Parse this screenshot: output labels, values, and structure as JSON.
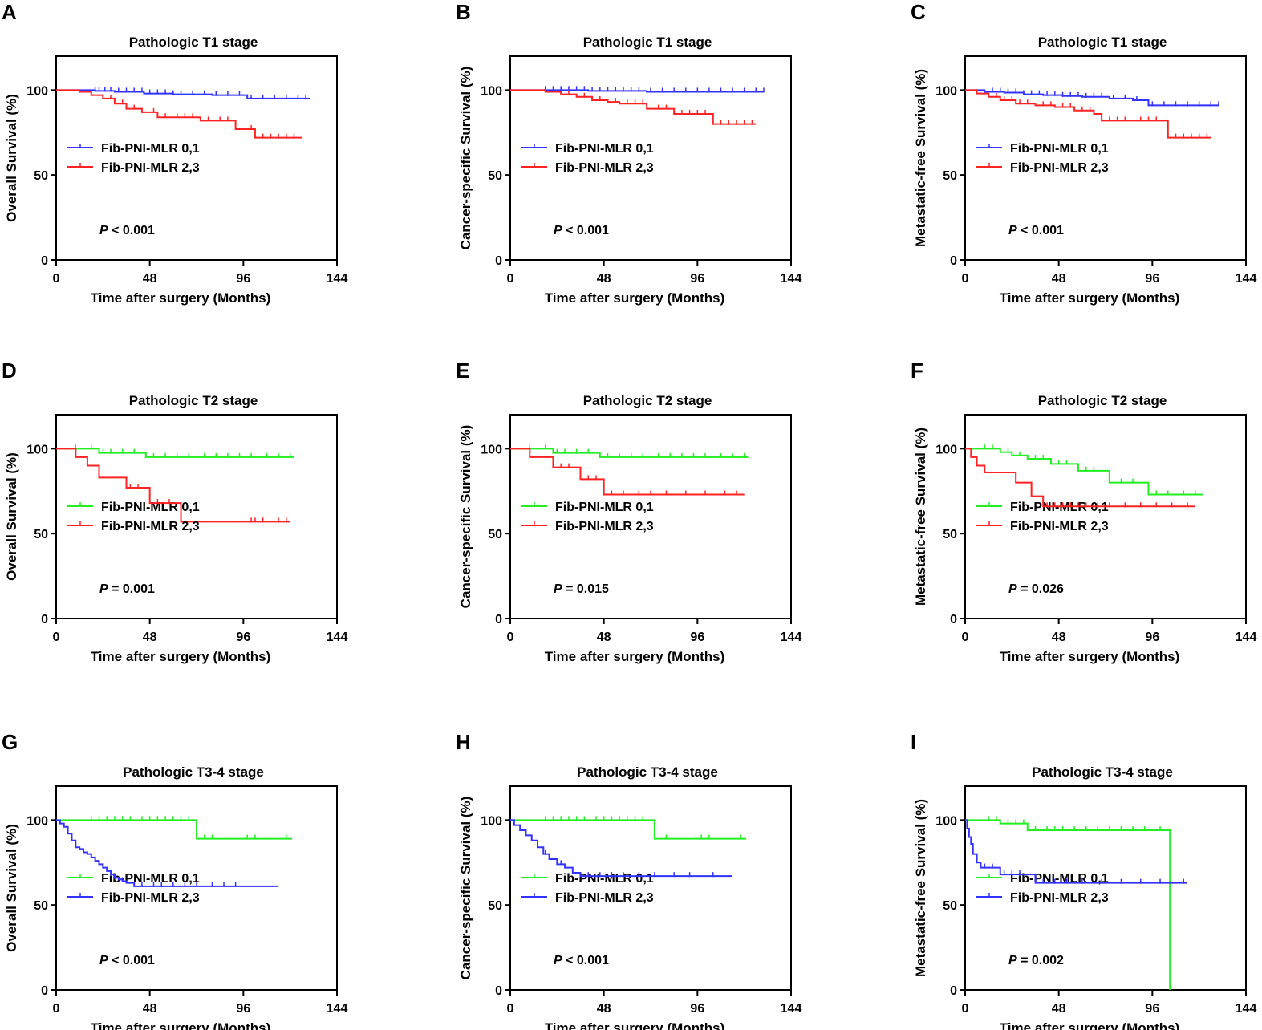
{
  "colors": {
    "blue": "#3333ff",
    "red": "#ff2222",
    "green": "#22ee22",
    "axis": "#000000"
  },
  "chart_data": [
    {
      "panel": "A",
      "type": "line",
      "title": "Pathologic T1 stage",
      "xlabel": "Time after surgery (Months)",
      "ylabel": "Overall Survival (%)",
      "xlim": [
        0,
        144
      ],
      "ylim": [
        0,
        120
      ],
      "xticks": [
        "0",
        "48",
        "96",
        "144"
      ],
      "yticks": [
        "0",
        "50",
        "100"
      ],
      "p_prefix": "P",
      "p_text": " < 0.001",
      "series": [
        {
          "name": "Fib-PNI-MLR 0,1",
          "color": "blue",
          "x": [
            0,
            20,
            30,
            45,
            60,
            80,
            98,
            130
          ],
          "y": [
            100,
            99.5,
            99,
            98,
            97.5,
            97,
            95,
            95
          ],
          "censor_x": [
            20,
            22,
            25,
            28,
            32,
            36,
            40,
            44,
            48,
            52,
            56,
            60,
            64,
            70,
            76,
            82,
            88,
            94,
            100,
            106,
            112,
            118,
            124,
            128
          ]
        },
        {
          "name": "Fib-PNI-MLR 2,3",
          "color": "red",
          "x": [
            0,
            12,
            18,
            24,
            30,
            36,
            44,
            52,
            60,
            74,
            92,
            102,
            116,
            126
          ],
          "y": [
            100,
            99,
            97,
            95,
            92,
            89,
            87,
            84,
            84,
            82,
            77,
            72,
            72,
            72
          ],
          "censor_x": [
            28,
            34,
            40,
            50,
            56,
            62,
            66,
            70,
            78,
            84,
            88,
            100,
            106,
            110,
            114,
            118,
            122
          ]
        }
      ]
    },
    {
      "panel": "B",
      "type": "line",
      "title": "Pathologic T1 stage",
      "xlabel": "Time after surgery (Months)",
      "ylabel": "Cancer-specific Survival (%)",
      "xlim": [
        0,
        144
      ],
      "ylim": [
        0,
        120
      ],
      "xticks": [
        "0",
        "48",
        "96",
        "144"
      ],
      "yticks": [
        "0",
        "50",
        "100"
      ],
      "p_prefix": "P",
      "p_text": " < 0.001",
      "series": [
        {
          "name": "Fib-PNI-MLR 0,1",
          "color": "blue",
          "x": [
            0,
            40,
            70,
            130
          ],
          "y": [
            100,
            99.5,
            99,
            99
          ],
          "censor_x": [
            18,
            22,
            26,
            30,
            34,
            38,
            42,
            46,
            50,
            54,
            58,
            62,
            66,
            72,
            78,
            84,
            90,
            96,
            102,
            108,
            114,
            120,
            126,
            130
          ]
        },
        {
          "name": "Fib-PNI-MLR 2,3",
          "color": "red",
          "x": [
            0,
            18,
            26,
            34,
            42,
            50,
            56,
            70,
            84,
            104,
            126
          ],
          "y": [
            100,
            99,
            97.5,
            96,
            94,
            93,
            92,
            89,
            86,
            80,
            80
          ],
          "censor_x": [
            30,
            38,
            46,
            54,
            60,
            64,
            68,
            76,
            80,
            88,
            92,
            96,
            100,
            108,
            112,
            116,
            120,
            124
          ]
        }
      ]
    },
    {
      "panel": "C",
      "type": "line",
      "title": "Pathologic T1 stage",
      "xlabel": "Time after surgery (Months)",
      "ylabel": "Metastatic-free Survival (%)",
      "xlim": [
        0,
        144
      ],
      "ylim": [
        0,
        120
      ],
      "xticks": [
        "0",
        "48",
        "96",
        "144"
      ],
      "yticks": [
        "0",
        "50",
        "100"
      ],
      "p_prefix": "P",
      "p_text": " < 0.001",
      "series": [
        {
          "name": "Fib-PNI-MLR 0,1",
          "color": "blue",
          "x": [
            0,
            10,
            20,
            30,
            40,
            50,
            60,
            74,
            86,
            94,
            130
          ],
          "y": [
            100,
            99,
            98.5,
            97.5,
            97,
            96.5,
            96,
            95,
            94,
            91,
            91
          ],
          "censor_x": [
            14,
            18,
            22,
            26,
            30,
            34,
            38,
            42,
            46,
            50,
            54,
            58,
            62,
            66,
            70,
            76,
            82,
            88,
            96,
            102,
            108,
            114,
            120,
            126,
            130
          ]
        },
        {
          "name": "Fib-PNI-MLR 2,3",
          "color": "red",
          "x": [
            0,
            6,
            12,
            18,
            26,
            36,
            46,
            56,
            66,
            70,
            86,
            104,
            126
          ],
          "y": [
            100,
            98,
            96,
            94,
            92,
            91,
            90,
            88,
            86,
            82,
            82,
            72,
            72
          ],
          "censor_x": [
            16,
            20,
            24,
            28,
            32,
            40,
            44,
            50,
            54,
            60,
            64,
            74,
            78,
            82,
            90,
            94,
            98,
            108,
            112,
            116,
            120,
            124
          ]
        }
      ]
    },
    {
      "panel": "D",
      "type": "line",
      "title": "Pathologic T2 stage",
      "xlabel": "Time after surgery (Months)",
      "ylabel": "Overall Survival (%)",
      "xlim": [
        0,
        144
      ],
      "ylim": [
        0,
        120
      ],
      "xticks": [
        "0",
        "48",
        "96",
        "144"
      ],
      "yticks": [
        "0",
        "50",
        "100"
      ],
      "p_prefix": "P",
      "p_text": " = 0.001",
      "series": [
        {
          "name": "Fib-PNI-MLR 0,1",
          "color": "green",
          "x": [
            0,
            22,
            46,
            122
          ],
          "y": [
            100,
            97.5,
            95,
            95
          ],
          "censor_x": [
            10,
            18,
            24,
            28,
            34,
            40,
            50,
            56,
            62,
            68,
            76,
            82,
            88,
            94,
            100,
            108,
            114,
            120
          ]
        },
        {
          "name": "Fib-PNI-MLR 2,3",
          "color": "red",
          "x": [
            0,
            10,
            16,
            22,
            28,
            36,
            48,
            64,
            120
          ],
          "y": [
            100,
            95,
            90,
            83,
            83,
            77,
            68,
            57,
            57
          ],
          "censor_x": [
            38,
            42,
            52,
            58,
            100,
            102,
            106,
            114,
            118
          ]
        }
      ]
    },
    {
      "panel": "E",
      "type": "line",
      "title": "Pathologic T2 stage",
      "xlabel": "Time after surgery (Months)",
      "ylabel": "Cancer-specific Survival (%)",
      "xlim": [
        0,
        144
      ],
      "ylim": [
        0,
        120
      ],
      "xticks": [
        "0",
        "48",
        "96",
        "144"
      ],
      "yticks": [
        "0",
        "50",
        "100"
      ],
      "p_prefix": "P",
      "p_text": " = 0.015",
      "series": [
        {
          "name": "Fib-PNI-MLR 0,1",
          "color": "green",
          "x": [
            0,
            22,
            46,
            122
          ],
          "y": [
            100,
            97.5,
            95,
            95
          ],
          "censor_x": [
            10,
            18,
            24,
            28,
            34,
            40,
            50,
            56,
            62,
            68,
            76,
            82,
            88,
            94,
            100,
            108,
            114,
            120
          ]
        },
        {
          "name": "Fib-PNI-MLR 2,3",
          "color": "red",
          "x": [
            0,
            10,
            22,
            36,
            48,
            120
          ],
          "y": [
            100,
            95,
            89,
            82,
            73,
            73
          ],
          "censor_x": [
            26,
            30,
            40,
            44,
            52,
            58,
            66,
            72,
            80,
            90,
            100,
            110,
            116
          ]
        }
      ]
    },
    {
      "panel": "F",
      "type": "line",
      "title": "Pathologic T2 stage",
      "xlabel": "Time after surgery (Months)",
      "ylabel": "Metastatic-free Survival (%)",
      "xlim": [
        0,
        144
      ],
      "ylim": [
        0,
        120
      ],
      "xticks": [
        "0",
        "48",
        "96",
        "144"
      ],
      "yticks": [
        "0",
        "50",
        "100"
      ],
      "p_prefix": "P",
      "p_text": " = 0.026",
      "series": [
        {
          "name": "Fib-PNI-MLR 0,1",
          "color": "green",
          "x": [
            0,
            18,
            24,
            32,
            44,
            58,
            74,
            94,
            122
          ],
          "y": [
            100,
            98,
            96,
            94,
            91,
            87,
            80,
            73,
            73
          ],
          "censor_x": [
            10,
            14,
            22,
            28,
            36,
            40,
            48,
            52,
            62,
            66,
            80,
            86,
            98,
            104,
            112,
            118
          ]
        },
        {
          "name": "Fib-PNI-MLR 2,3",
          "color": "red",
          "x": [
            0,
            3,
            6,
            10,
            20,
            26,
            34,
            40,
            118
          ],
          "y": [
            100,
            95,
            90,
            86,
            86,
            80,
            72,
            66,
            66
          ],
          "censor_x": [
            42,
            46,
            50,
            54,
            58,
            62,
            68,
            74,
            82,
            90,
            98,
            106,
            114
          ]
        }
      ]
    },
    {
      "panel": "G",
      "type": "line",
      "title": "Pathologic T3-4 stage",
      "xlabel": "Time after surgery (Months)",
      "ylabel": "Overall Survival (%)",
      "xlim": [
        0,
        144
      ],
      "ylim": [
        0,
        120
      ],
      "xticks": [
        "0",
        "48",
        "96",
        "144"
      ],
      "yticks": [
        "0",
        "50",
        "100"
      ],
      "p_prefix": "P",
      "p_text": " < 0.001",
      "series": [
        {
          "name": "Fib-PNI-MLR 0,1",
          "color": "green",
          "x": [
            0,
            72,
            121
          ],
          "y": [
            100,
            89,
            89
          ],
          "censor_x": [
            18,
            22,
            26,
            30,
            34,
            38,
            44,
            48,
            52,
            56,
            60,
            64,
            68,
            76,
            80,
            98,
            102,
            118
          ]
        },
        {
          "name": "Fib-PNI-MLR 2,3",
          "color": "blue",
          "x": [
            0,
            2,
            4,
            6,
            8,
            10,
            12,
            14,
            16,
            18,
            20,
            22,
            24,
            26,
            28,
            30,
            32,
            34,
            36,
            40,
            114
          ],
          "y": [
            100,
            98,
            96,
            92,
            88,
            84,
            83,
            81,
            80,
            78,
            76,
            74,
            72,
            70,
            68,
            66,
            65,
            64,
            63,
            61,
            61
          ],
          "censor_x": [
            24,
            34,
            44,
            50,
            54,
            60,
            66,
            72,
            80,
            86,
            92
          ]
        }
      ]
    },
    {
      "panel": "H",
      "type": "line",
      "title": "Pathologic T3-4 stage",
      "xlabel": "Time after surgery (Months)",
      "ylabel": "Cancer-specific Survival (%)",
      "xlim": [
        0,
        144
      ],
      "ylim": [
        0,
        120
      ],
      "xticks": [
        "0",
        "48",
        "96",
        "144"
      ],
      "yticks": [
        "0",
        "50",
        "100"
      ],
      "p_prefix": "P",
      "p_text": " < 0.001",
      "series": [
        {
          "name": "Fib-PNI-MLR 0,1",
          "color": "green",
          "x": [
            0,
            74,
            121
          ],
          "y": [
            100,
            89,
            89
          ],
          "censor_x": [
            18,
            22,
            26,
            30,
            34,
            38,
            44,
            48,
            52,
            56,
            60,
            64,
            68,
            80,
            98,
            102,
            118
          ]
        },
        {
          "name": "Fib-PNI-MLR 2,3",
          "color": "blue",
          "x": [
            0,
            2,
            5,
            8,
            11,
            14,
            17,
            20,
            24,
            28,
            32,
            36,
            114
          ],
          "y": [
            100,
            97,
            94,
            91,
            88,
            84,
            80,
            77,
            74,
            72,
            69,
            67,
            67
          ],
          "censor_x": [
            18,
            26,
            40,
            46,
            52,
            58,
            66,
            74,
            84,
            92,
            104
          ]
        }
      ]
    },
    {
      "panel": "I",
      "type": "line",
      "title": "Pathologic T3-4 stage",
      "xlabel": "Time after surgery (Months)",
      "ylabel": "Metastatic-free Survival (%)",
      "xlim": [
        0,
        144
      ],
      "ylim": [
        0,
        120
      ],
      "xticks": [
        "0",
        "48",
        "96",
        "144"
      ],
      "yticks": [
        "0",
        "50",
        "100"
      ],
      "p_prefix": "P",
      "p_text": " = 0.002",
      "series": [
        {
          "name": "Fib-PNI-MLR 0,1",
          "color": "green",
          "x": [
            0,
            18,
            32,
            105,
            105
          ],
          "y": [
            100,
            98,
            94,
            94,
            0
          ],
          "censor_x": [
            12,
            16,
            22,
            26,
            30,
            36,
            42,
            46,
            50,
            56,
            62,
            68,
            74,
            80,
            86,
            92,
            100
          ]
        },
        {
          "name": "Fib-PNI-MLR 2,3",
          "color": "blue",
          "x": [
            0,
            1,
            2,
            3,
            4,
            6,
            8,
            18,
            36,
            114
          ],
          "y": [
            100,
            95,
            90,
            86,
            80,
            75,
            72,
            68,
            63,
            63
          ],
          "censor_x": [
            10,
            14,
            20,
            24,
            28,
            40,
            46,
            52,
            60,
            70,
            80,
            90,
            100,
            112
          ]
        }
      ]
    }
  ]
}
